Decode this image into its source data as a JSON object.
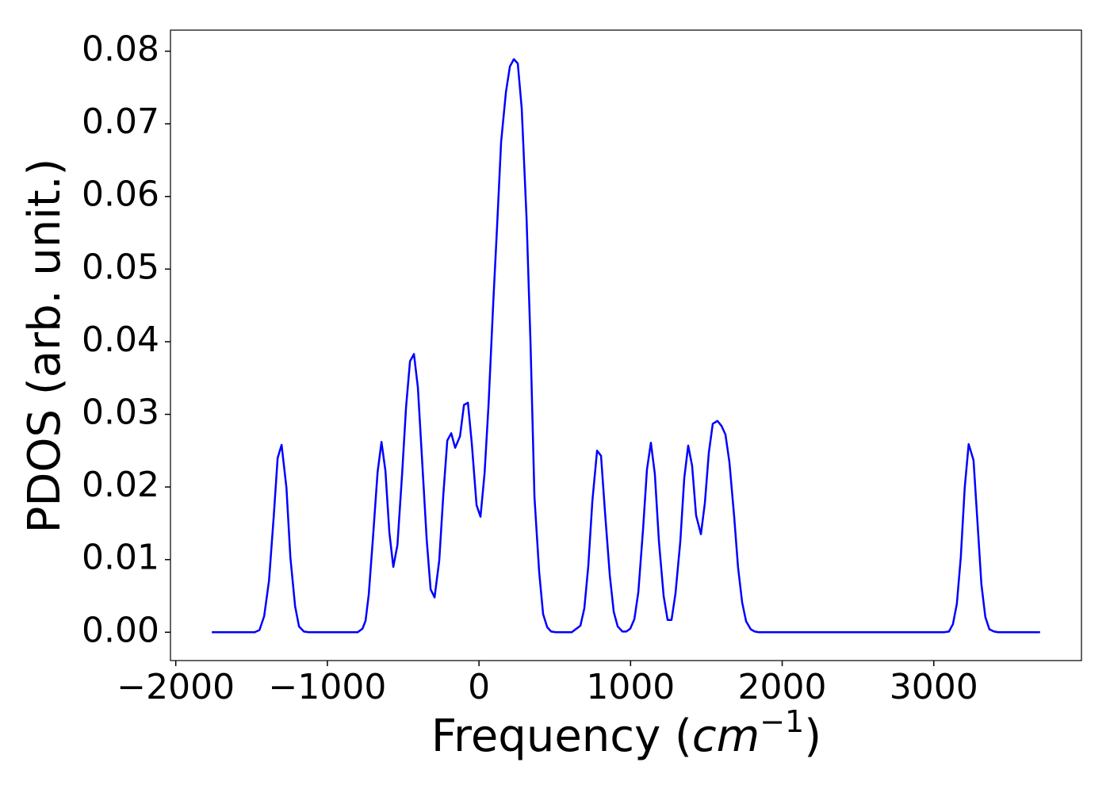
{
  "chart_data": {
    "type": "line",
    "xlabel": {
      "prefix": "Frequency (",
      "italic": "cm",
      "superscript": "−1",
      "suffix": ")"
    },
    "ylabel": "PDOS (arb. unit.)",
    "xlim": [
      -2035,
      3974
    ],
    "ylim": [
      -0.0039,
      0.0829
    ],
    "xticks": [
      {
        "value": -2000,
        "label": "−2000"
      },
      {
        "value": -1000,
        "label": "−1000"
      },
      0,
      1000,
      2000,
      3000
    ],
    "yticks": [
      {
        "value": 0,
        "label": "0.00"
      },
      0.01,
      0.02,
      0.03,
      0.04,
      0.05,
      0.06,
      0.07,
      0.08
    ],
    "grid": false,
    "series": [
      {
        "color": "#0000ff",
        "x": [
          -1762,
          -1479,
          -1448,
          -1417,
          -1385,
          -1354,
          -1328,
          -1302,
          -1270,
          -1244,
          -1213,
          -1187,
          -1155,
          -1124,
          -800,
          -768,
          -748,
          -727,
          -700,
          -669,
          -643,
          -617,
          -591,
          -565,
          -538,
          -507,
          -481,
          -455,
          -429,
          -403,
          -376,
          -345,
          -319,
          -293,
          -262,
          -235,
          -209,
          -183,
          -157,
          -125,
          -99,
          -73,
          -47,
          -16,
          10,
          37,
          63,
          94,
          120,
          146,
          178,
          204,
          230,
          256,
          282,
          314,
          340,
          366,
          397,
          423,
          450,
          476,
          507,
          612,
          643,
          669,
          695,
          721,
          748,
          779,
          805,
          831,
          863,
          889,
          915,
          946,
          972,
          998,
          1025,
          1051,
          1082,
          1108,
          1134,
          1160,
          1187,
          1218,
          1244,
          1270,
          1296,
          1328,
          1354,
          1380,
          1406,
          1432,
          1464,
          1490,
          1516,
          1542,
          1573,
          1600,
          1626,
          1652,
          1683,
          1709,
          1736,
          1762,
          1793,
          1819,
          1845,
          3068,
          3100,
          3126,
          3152,
          3178,
          3204,
          3230,
          3262,
          3288,
          3314,
          3340,
          3367,
          3398,
          3424,
          3701
        ],
        "values": [
          0,
          0,
          0.0003,
          0.0022,
          0.0071,
          0.0159,
          0.024,
          0.0258,
          0.0199,
          0.0103,
          0.0036,
          0.0008,
          0.0001,
          0,
          0,
          0.0005,
          0.0016,
          0.0052,
          0.0128,
          0.022,
          0.0262,
          0.0222,
          0.0137,
          0.009,
          0.012,
          0.0218,
          0.031,
          0.0373,
          0.0383,
          0.0337,
          0.024,
          0.0128,
          0.0059,
          0.0048,
          0.0099,
          0.019,
          0.0264,
          0.0274,
          0.0254,
          0.027,
          0.0313,
          0.0316,
          0.0259,
          0.0175,
          0.0159,
          0.0219,
          0.0313,
          0.0453,
          0.0561,
          0.0675,
          0.0744,
          0.0779,
          0.0789,
          0.0783,
          0.0721,
          0.0569,
          0.0398,
          0.0186,
          0.0083,
          0.0025,
          0.0007,
          0.0001,
          0,
          0,
          0.0005,
          0.0009,
          0.0033,
          0.0091,
          0.0181,
          0.025,
          0.0243,
          0.0166,
          0.0078,
          0.0028,
          0.0008,
          0.0001,
          0.0001,
          0.0005,
          0.0018,
          0.0055,
          0.0141,
          0.0224,
          0.0261,
          0.0218,
          0.0125,
          0.005,
          0.0017,
          0.0017,
          0.0053,
          0.0125,
          0.0212,
          0.0257,
          0.0229,
          0.0161,
          0.0135,
          0.0178,
          0.0247,
          0.0287,
          0.0291,
          0.0284,
          0.0272,
          0.0234,
          0.016,
          0.0089,
          0.0041,
          0.0015,
          0.0004,
          0.0001,
          0,
          0,
          0.0001,
          0.0011,
          0.0039,
          0.0103,
          0.0199,
          0.0259,
          0.0237,
          0.0152,
          0.0066,
          0.0021,
          0.0004,
          0.0001,
          0,
          0
        ]
      }
    ]
  }
}
